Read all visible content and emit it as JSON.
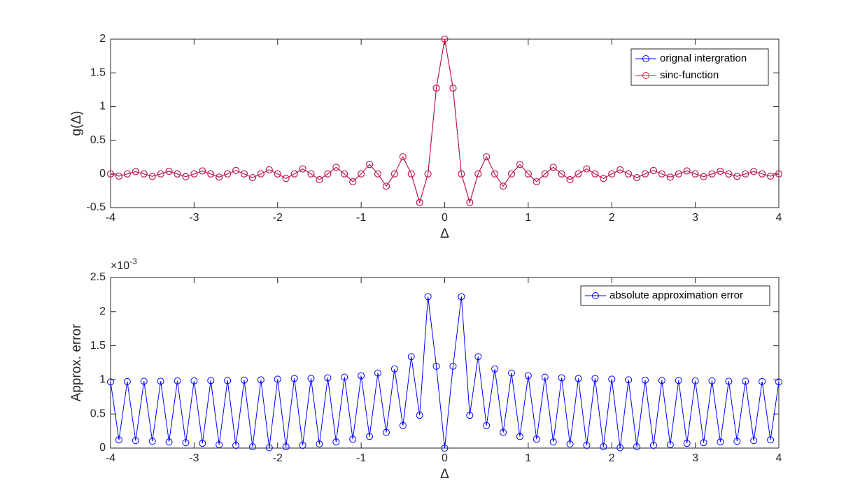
{
  "chart_data": [
    {
      "type": "line",
      "ylabel": "g(Δ)",
      "xlabel": "Δ",
      "x": [
        -4,
        -3.9,
        -3.8,
        -3.7,
        -3.6,
        -3.5,
        -3.4,
        -3.3,
        -3.2,
        -3.1,
        -3,
        -2.9,
        -2.8,
        -2.7,
        -2.6,
        -2.5,
        -2.4,
        -2.3,
        -2.2,
        -2.1,
        -2,
        -1.9,
        -1.8,
        -1.7,
        -1.6,
        -1.5,
        -1.4,
        -1.3,
        -1.2,
        -1.1,
        -1,
        -0.9,
        -0.8,
        -0.7,
        -0.6,
        -0.5,
        -0.4,
        -0.3,
        -0.2,
        -0.1,
        0,
        0.1,
        0.2,
        0.3,
        0.4,
        0.5,
        0.6,
        0.7,
        0.8,
        0.9,
        1,
        1.1,
        1.2,
        1.3,
        1.4,
        1.5,
        1.6,
        1.7,
        1.8,
        1.9,
        2,
        2.1,
        2.2,
        2.3,
        2.4,
        2.5,
        2.6,
        2.7,
        2.8,
        2.9,
        3,
        3.1,
        3.2,
        3.3,
        3.4,
        3.5,
        3.6,
        3.7,
        3.8,
        3.9,
        4
      ],
      "series": [
        {
          "name": "orignal intergration",
          "color": "#0000ff",
          "values": [
            0,
            -0.033,
            0,
            0.034,
            0,
            -0.036,
            0,
            0.039,
            0,
            -0.041,
            0,
            0.044,
            0,
            -0.047,
            0,
            0.051,
            0,
            -0.055,
            0,
            0.061,
            0,
            -0.067,
            0,
            0.075,
            0,
            -0.085,
            0,
            0.098,
            0,
            -0.116,
            0,
            0.141,
            0,
            -0.182,
            0,
            0.255,
            0,
            -0.424,
            0,
            1.273,
            2,
            1.273,
            0,
            -0.424,
            0,
            0.255,
            0,
            -0.182,
            0,
            0.141,
            0,
            -0.116,
            0,
            0.098,
            0,
            -0.085,
            0,
            0.075,
            0,
            -0.067,
            0,
            0.061,
            0,
            -0.055,
            0,
            0.051,
            0,
            -0.047,
            0,
            0.044,
            0,
            -0.041,
            0,
            0.039,
            0,
            -0.036,
            0,
            0.034,
            0,
            -0.033,
            0
          ]
        },
        {
          "name": "sinc-function",
          "color": "#d6182a",
          "values": [
            0,
            -0.033,
            0,
            0.034,
            0,
            -0.036,
            0,
            0.039,
            0,
            -0.041,
            0,
            0.044,
            0,
            -0.047,
            0,
            0.051,
            0,
            -0.055,
            0,
            0.061,
            0,
            -0.067,
            0,
            0.075,
            0,
            -0.085,
            0,
            0.098,
            0,
            -0.116,
            0,
            0.141,
            0,
            -0.182,
            0,
            0.255,
            0,
            -0.424,
            0,
            1.273,
            2,
            1.273,
            0,
            -0.424,
            0,
            0.255,
            0,
            -0.182,
            0,
            0.141,
            0,
            -0.116,
            0,
            0.098,
            0,
            -0.085,
            0,
            0.075,
            0,
            -0.067,
            0,
            0.061,
            0,
            -0.055,
            0,
            0.051,
            0,
            -0.047,
            0,
            0.044,
            0,
            -0.041,
            0,
            0.039,
            0,
            -0.036,
            0,
            0.034,
            0,
            -0.033,
            0
          ]
        }
      ],
      "xlim": [
        -4,
        4
      ],
      "xticks": [
        -4,
        -3,
        -2,
        -1,
        0,
        1,
        2,
        3,
        4
      ],
      "ylim": [
        -0.5,
        2
      ],
      "yticks": [
        -0.5,
        0,
        0.5,
        1,
        1.5,
        2
      ],
      "legend": "upper-right"
    },
    {
      "type": "line",
      "ylabel": "Approx. error",
      "xlabel": "Δ",
      "y_scale_base": "×10",
      "y_scale_exponent": "-3",
      "x": [
        -4,
        -3.9,
        -3.8,
        -3.7,
        -3.6,
        -3.5,
        -3.4,
        -3.3,
        -3.2,
        -3.1,
        -3,
        -2.9,
        -2.8,
        -2.7,
        -2.6,
        -2.5,
        -2.4,
        -2.3,
        -2.2,
        -2.1,
        -2,
        -1.9,
        -1.8,
        -1.7,
        -1.6,
        -1.5,
        -1.4,
        -1.3,
        -1.2,
        -1.1,
        -1,
        -0.9,
        -0.8,
        -0.7,
        -0.6,
        -0.5,
        -0.4,
        -0.3,
        -0.2,
        -0.1,
        0,
        0.1,
        0.2,
        0.3,
        0.4,
        0.5,
        0.6,
        0.7,
        0.8,
        0.9,
        1,
        1.1,
        1.2,
        1.3,
        1.4,
        1.5,
        1.6,
        1.7,
        1.8,
        1.9,
        2,
        2.1,
        2.2,
        2.3,
        2.4,
        2.5,
        2.6,
        2.7,
        2.8,
        2.9,
        3,
        3.1,
        3.2,
        3.3,
        3.4,
        3.5,
        3.6,
        3.7,
        3.8,
        3.9,
        4
      ],
      "series": [
        {
          "name": "absolute approximation error",
          "color": "#0000ff",
          "values": [
            0.97,
            0.12,
            0.975,
            0.11,
            0.98,
            0.1,
            0.98,
            0.09,
            0.985,
            0.08,
            0.985,
            0.07,
            0.99,
            0.05,
            0.99,
            0.04,
            0.995,
            0.02,
            1.0,
            0.005,
            1.01,
            0.02,
            1.02,
            0.04,
            1.02,
            0.06,
            1.03,
            0.09,
            1.04,
            0.13,
            1.06,
            0.17,
            1.1,
            0.23,
            1.16,
            0.33,
            1.34,
            0.48,
            2.22,
            1.2,
            0,
            1.2,
            2.22,
            0.48,
            1.34,
            0.33,
            1.16,
            0.23,
            1.1,
            0.17,
            1.06,
            0.13,
            1.04,
            0.09,
            1.03,
            0.06,
            1.02,
            0.04,
            1.02,
            0.02,
            1.01,
            0.005,
            1.0,
            0.02,
            0.995,
            0.04,
            0.99,
            0.05,
            0.99,
            0.07,
            0.985,
            0.08,
            0.985,
            0.09,
            0.98,
            0.1,
            0.98,
            0.11,
            0.975,
            0.12,
            0.97
          ]
        }
      ],
      "xlim": [
        -4,
        4
      ],
      "xticks": [
        -4,
        -3,
        -2,
        -1,
        0,
        1,
        2,
        3,
        4
      ],
      "ylim": [
        0,
        2.5
      ],
      "yticks": [
        0,
        0.5,
        1,
        1.5,
        2,
        2.5
      ],
      "legend": "upper-right"
    }
  ]
}
